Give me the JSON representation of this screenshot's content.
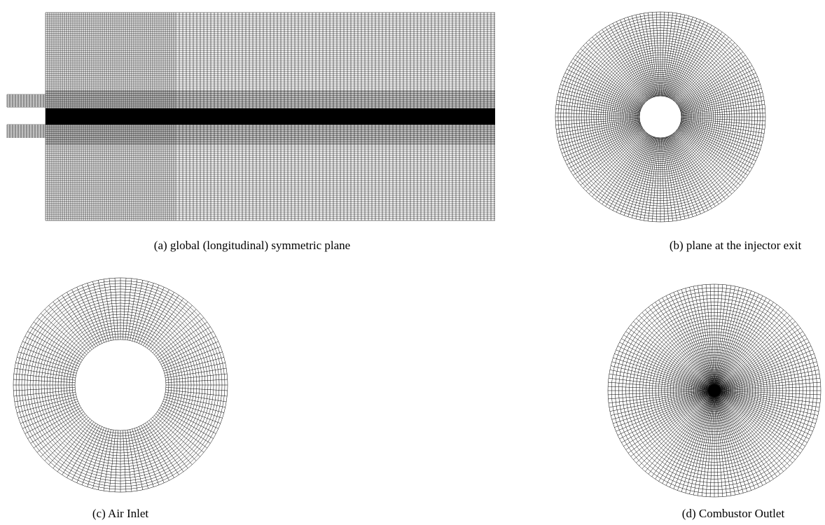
{
  "figures": [
    {
      "caption": "(a) global (longitudinal) symmetric plane"
    },
    {
      "caption": "(b) plane at the injector exit"
    },
    {
      "caption": "(c) Air Inlet"
    },
    {
      "caption": "(d) Combustor Outlet"
    }
  ]
}
